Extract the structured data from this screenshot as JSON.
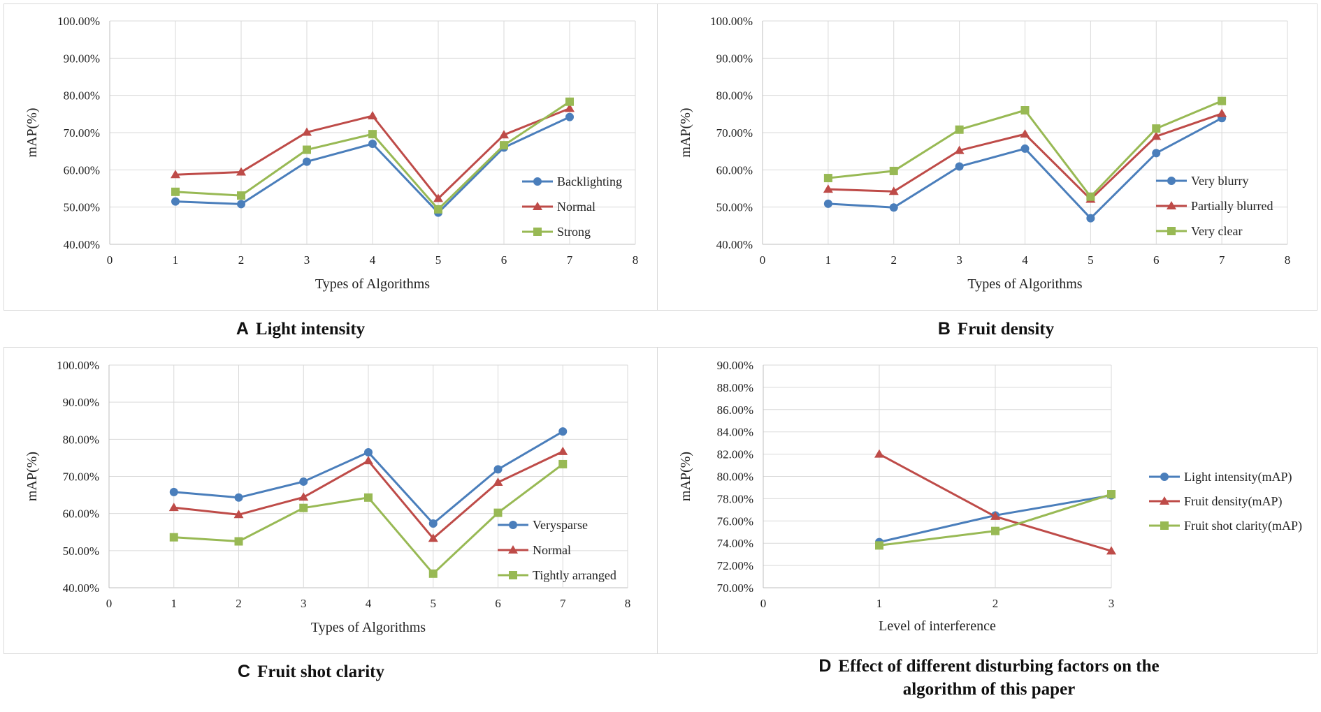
{
  "chart_data": [
    {
      "type": "line",
      "panel": "A",
      "title": "Light intensity",
      "xlabel": "Types of Algorithms",
      "ylabel": "mAP(%)",
      "xlim": [
        0,
        8
      ],
      "ylim": [
        0.4,
        1.0
      ],
      "x_ticks": [
        "0",
        "1",
        "2",
        "3",
        "4",
        "5",
        "6",
        "7",
        "8"
      ],
      "y_ticks": [
        "40.00%",
        "50.00%",
        "60.00%",
        "70.00%",
        "80.00%",
        "90.00%",
        "100.00%"
      ],
      "x": [
        1,
        2,
        3,
        4,
        5,
        6,
        7
      ],
      "grid": "vertical and horizontal",
      "legend_position": "right",
      "series": [
        {
          "name": "Backlighting",
          "marker": "circle",
          "color": "#4a7ebb",
          "values": [
            0.515,
            0.508,
            0.622,
            0.67,
            0.485,
            0.66,
            0.742
          ]
        },
        {
          "name": "Normal",
          "marker": "triangle",
          "color": "#be4b48",
          "values": [
            0.587,
            0.594,
            0.701,
            0.745,
            0.523,
            0.694,
            0.765
          ]
        },
        {
          "name": "Strong",
          "marker": "square",
          "color": "#98b954",
          "values": [
            0.541,
            0.531,
            0.654,
            0.696,
            0.494,
            0.666,
            0.783
          ]
        }
      ]
    },
    {
      "type": "line",
      "panel": "B",
      "title": "Fruit density",
      "xlabel": "Types of Algorithms",
      "ylabel": "mAP(%)",
      "xlim": [
        0,
        8
      ],
      "ylim": [
        0.4,
        1.0
      ],
      "x_ticks": [
        "0",
        "1",
        "2",
        "3",
        "4",
        "5",
        "6",
        "7",
        "8"
      ],
      "y_ticks": [
        "40.00%",
        "50.00%",
        "60.00%",
        "70.00%",
        "80.00%",
        "90.00%",
        "100.00%"
      ],
      "x": [
        1,
        2,
        3,
        4,
        5,
        6,
        7
      ],
      "grid": "vertical and horizontal",
      "legend_position": "right",
      "series": [
        {
          "name": "Very blurry",
          "marker": "circle",
          "color": "#4a7ebb",
          "values": [
            0.509,
            0.499,
            0.609,
            0.657,
            0.47,
            0.645,
            0.739
          ]
        },
        {
          "name": "Partially blurred",
          "marker": "triangle",
          "color": "#be4b48",
          "values": [
            0.548,
            0.542,
            0.652,
            0.696,
            0.521,
            0.69,
            0.751
          ]
        },
        {
          "name": "Very clear",
          "marker": "square",
          "color": "#98b954",
          "values": [
            0.578,
            0.597,
            0.708,
            0.76,
            0.528,
            0.711,
            0.785
          ]
        }
      ]
    },
    {
      "type": "line",
      "panel": "C",
      "title": "Fruit shot clarity",
      "xlabel": "Types of Algorithms",
      "ylabel": "mAP(%)",
      "xlim": [
        0,
        8
      ],
      "ylim": [
        0.4,
        1.0
      ],
      "x_ticks": [
        "0",
        "1",
        "2",
        "3",
        "4",
        "5",
        "6",
        "7",
        "8"
      ],
      "y_ticks": [
        "40.00%",
        "50.00%",
        "60.00%",
        "70.00%",
        "80.00%",
        "90.00%",
        "100.00%"
      ],
      "x": [
        1,
        2,
        3,
        4,
        5,
        6,
        7
      ],
      "grid": "vertical and horizontal",
      "legend_position": "right",
      "series": [
        {
          "name": "Verysparse",
          "marker": "circle",
          "color": "#4a7ebb",
          "values": [
            0.658,
            0.643,
            0.686,
            0.765,
            0.573,
            0.719,
            0.821
          ]
        },
        {
          "name": "Normal",
          "marker": "triangle",
          "color": "#be4b48",
          "values": [
            0.616,
            0.597,
            0.644,
            0.742,
            0.533,
            0.684,
            0.767
          ]
        },
        {
          "name": "Tightly arranged",
          "marker": "square",
          "color": "#98b954",
          "values": [
            0.536,
            0.525,
            0.615,
            0.643,
            0.438,
            0.602,
            0.733
          ]
        }
      ]
    },
    {
      "type": "line",
      "panel": "D",
      "title": "Effect of different disturbing factors on the algorithm of this paper",
      "xlabel": "Level of interference",
      "ylabel": "mAP(%)",
      "xlim": [
        0,
        3
      ],
      "ylim": [
        0.7,
        0.9
      ],
      "x_ticks": [
        "0",
        "1",
        "2",
        "3"
      ],
      "y_ticks": [
        "70.00%",
        "72.00%",
        "74.00%",
        "76.00%",
        "78.00%",
        "80.00%",
        "82.00%",
        "84.00%",
        "86.00%",
        "88.00%",
        "90.00%"
      ],
      "x": [
        1,
        2,
        3
      ],
      "grid": "vertical and horizontal",
      "legend_position": "right",
      "series": [
        {
          "name": "Light intensity(mAP)",
          "marker": "circle",
          "color": "#4a7ebb",
          "values": [
            0.741,
            0.765,
            0.783
          ]
        },
        {
          "name": "Fruit density(mAP)",
          "marker": "triangle",
          "color": "#be4b48",
          "values": [
            0.82,
            0.764,
            0.733
          ]
        },
        {
          "name": "Fruit shot clarity(mAP)",
          "marker": "square",
          "color": "#98b954",
          "values": [
            0.738,
            0.751,
            0.784
          ]
        }
      ]
    }
  ],
  "captions": [
    {
      "letter": "A",
      "text": "Light intensity"
    },
    {
      "letter": "B",
      "text": "Fruit density"
    },
    {
      "letter": "C",
      "text": "Fruit shot clarity"
    },
    {
      "letter": "D",
      "text": "Effect of different disturbing factors on the algorithm of this paper"
    }
  ]
}
